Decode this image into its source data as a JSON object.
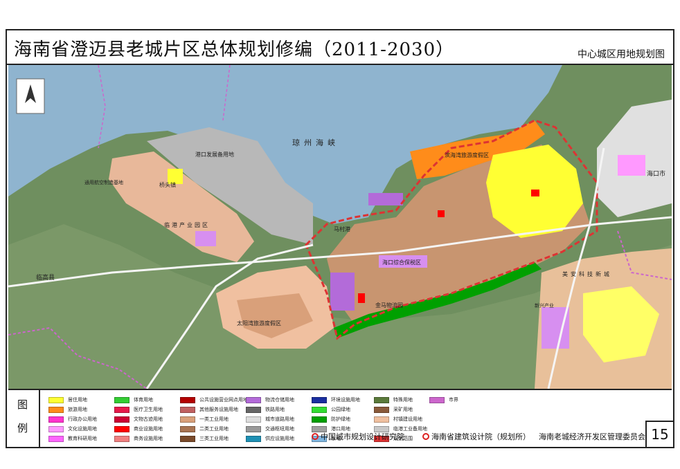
{
  "title": "海南省澄迈县老城片区总体规划修编（2011-2030）",
  "subtitle": "中心城区用地规划图",
  "map": {
    "labels": {
      "strait": "琼州海峡",
      "port_reserve": "港口发展备用地",
      "qiaotou": "桥头镇",
      "lingang": "临港产业园区",
      "binhai": "滨海湾旅游度假区",
      "haikou_zone": "海口综合保税区",
      "jinxing": "金马物流园",
      "taiyang": "太阳湾旅游度假区",
      "meian": "美安科技新城",
      "macun": "马村港",
      "haikoushi": "海口市",
      "lingao": "临高县",
      "tongyong": "通用航空制造基地",
      "xinan": "新兴产业"
    }
  },
  "legend": {
    "head_1": "图",
    "head_2": "例",
    "items": [
      {
        "label": "居住用地",
        "color": "#ffff33"
      },
      {
        "label": "旅游用地",
        "color": "#ff8c1a"
      },
      {
        "label": "行政办公用地",
        "color": "#ff33cc"
      },
      {
        "label": "文化设施用地",
        "color": "#ff99ff"
      },
      {
        "label": "教育科研用地",
        "color": "#ff66ff"
      },
      {
        "label": "体育用地",
        "color": "#33cc33"
      },
      {
        "label": "医疗卫生用地",
        "color": "#e6194b"
      },
      {
        "label": "文物古迹用地",
        "color": "#cc0033"
      },
      {
        "label": "商业设施用地",
        "color": "#ff0000"
      },
      {
        "label": "商务设施用地",
        "color": "#f08080"
      },
      {
        "label": "公共设施营业网点用地",
        "color": "#b30000"
      },
      {
        "label": "其他服务设施用地",
        "color": "#c06060"
      },
      {
        "label": "一类工业用地",
        "color": "#d9a07a"
      },
      {
        "label": "二类工业用地",
        "color": "#a97452"
      },
      {
        "label": "三类工业用地",
        "color": "#7a4a2a"
      },
      {
        "label": "物流仓储用地",
        "color": "#b36bd9"
      },
      {
        "label": "铁路用地",
        "color": "#666666"
      },
      {
        "label": "城市道路用地",
        "color": "#dddddd"
      },
      {
        "label": "交通枢纽用地",
        "color": "#999999"
      },
      {
        "label": "供应设施用地",
        "color": "#1e90b4"
      },
      {
        "label": "环境设施用地",
        "color": "#1a2fa0"
      },
      {
        "label": "公园绿地",
        "color": "#33dd33"
      },
      {
        "label": "防护绿地",
        "color": "#00a000"
      },
      {
        "label": "港口用地",
        "color": "#a0a0a0"
      },
      {
        "label": "水域",
        "color": "#7fb6e0"
      },
      {
        "label": "特殊用地",
        "color": "#5a7a3a"
      },
      {
        "label": "采矿用地",
        "color": "#8a5a3a"
      },
      {
        "label": "村镇建设用地",
        "color": "#f0c0a0"
      },
      {
        "label": "临港工业备用地",
        "color": "#c8c8c8"
      },
      {
        "label": "规划范围",
        "color": "#dd3333"
      },
      {
        "label": "市界",
        "color": "#cc66cc"
      }
    ]
  },
  "orgs": [
    "中国城市规划设计研究院",
    "海南省建筑设计院（规划所）",
    "海南老城经济开发区管理委员会"
  ],
  "page_number": "15"
}
